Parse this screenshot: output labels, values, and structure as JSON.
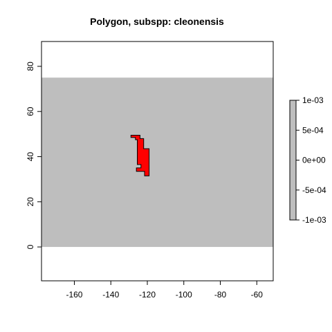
{
  "chart_data": {
    "type": "heatmap",
    "title": "Polygon, subspp: cleonensis",
    "xlabel": "",
    "ylabel": "",
    "xlim": [
      -178,
      -51
    ],
    "ylim": [
      -15,
      91
    ],
    "x_ticks": [
      -160,
      -140,
      -120,
      -100,
      -80,
      -60
    ],
    "y_ticks": [
      0,
      20,
      40,
      60,
      80
    ],
    "grid": false,
    "raster_extent": {
      "x": [
        -178,
        -51
      ],
      "y": [
        0,
        75
      ]
    },
    "raster_value": 0,
    "raster_color": "#bebebe",
    "polygon": {
      "color": "#ff0000",
      "outline": "#000000",
      "vertices": [
        [
          -129,
          49.5
        ],
        [
          -124,
          49.5
        ],
        [
          -124,
          48
        ],
        [
          -122,
          48
        ],
        [
          -122,
          43.5
        ],
        [
          -119,
          43.5
        ],
        [
          -119,
          31.5
        ],
        [
          -121.5,
          31.5
        ],
        [
          -121.5,
          33.5
        ],
        [
          -126,
          33.5
        ],
        [
          -126,
          35
        ],
        [
          -123.5,
          35
        ],
        [
          -123.5,
          36.5
        ],
        [
          -125.5,
          36.5
        ],
        [
          -125.5,
          47.5
        ],
        [
          -126.5,
          47.5
        ],
        [
          -126.5,
          48.5
        ],
        [
          -129,
          48.5
        ]
      ]
    },
    "legend": {
      "placement": "right",
      "color": "#bebebe",
      "range": [
        -0.001,
        0.001
      ],
      "labels": [
        "1e-03",
        "5e-04",
        "0e+00",
        "-5e-04",
        "-1e-03"
      ],
      "label_values": [
        0.001,
        0.0005,
        0,
        -0.0005,
        -0.001
      ]
    }
  }
}
